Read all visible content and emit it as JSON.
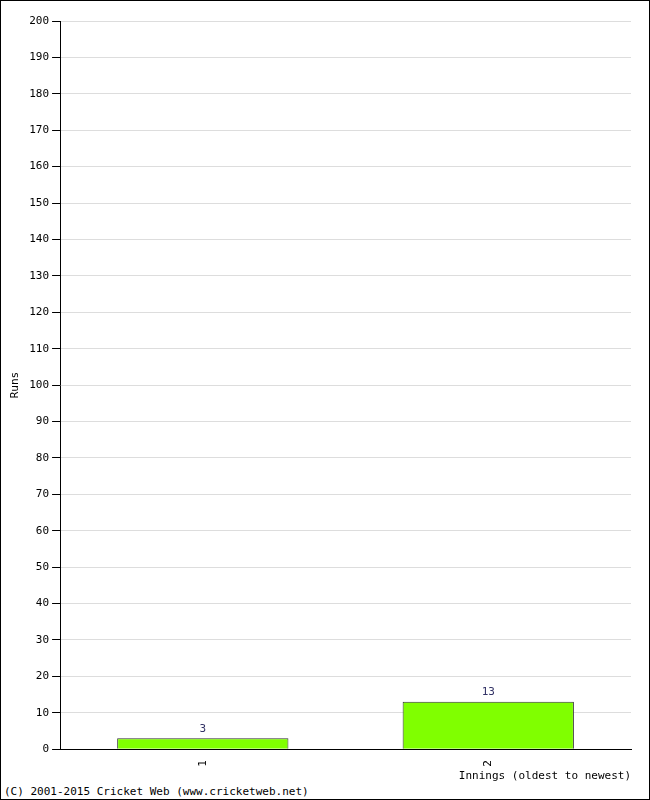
{
  "chart_data": {
    "type": "bar",
    "categories": [
      "1",
      "2"
    ],
    "values": [
      3,
      13
    ],
    "color": "#80ff00",
    "ylim": [
      0,
      200
    ],
    "yticks": [
      0,
      10,
      20,
      30,
      40,
      50,
      60,
      70,
      80,
      90,
      100,
      110,
      120,
      130,
      140,
      150,
      160,
      170,
      180,
      190,
      200
    ],
    "grid": true,
    "data_labels": true,
    "xlabel": "Innings (oldest to newest)",
    "ylabel": "Runs",
    "annotations": [
      "(C) 2001-2015 Cricket Web (www.cricketweb.net)"
    ]
  }
}
